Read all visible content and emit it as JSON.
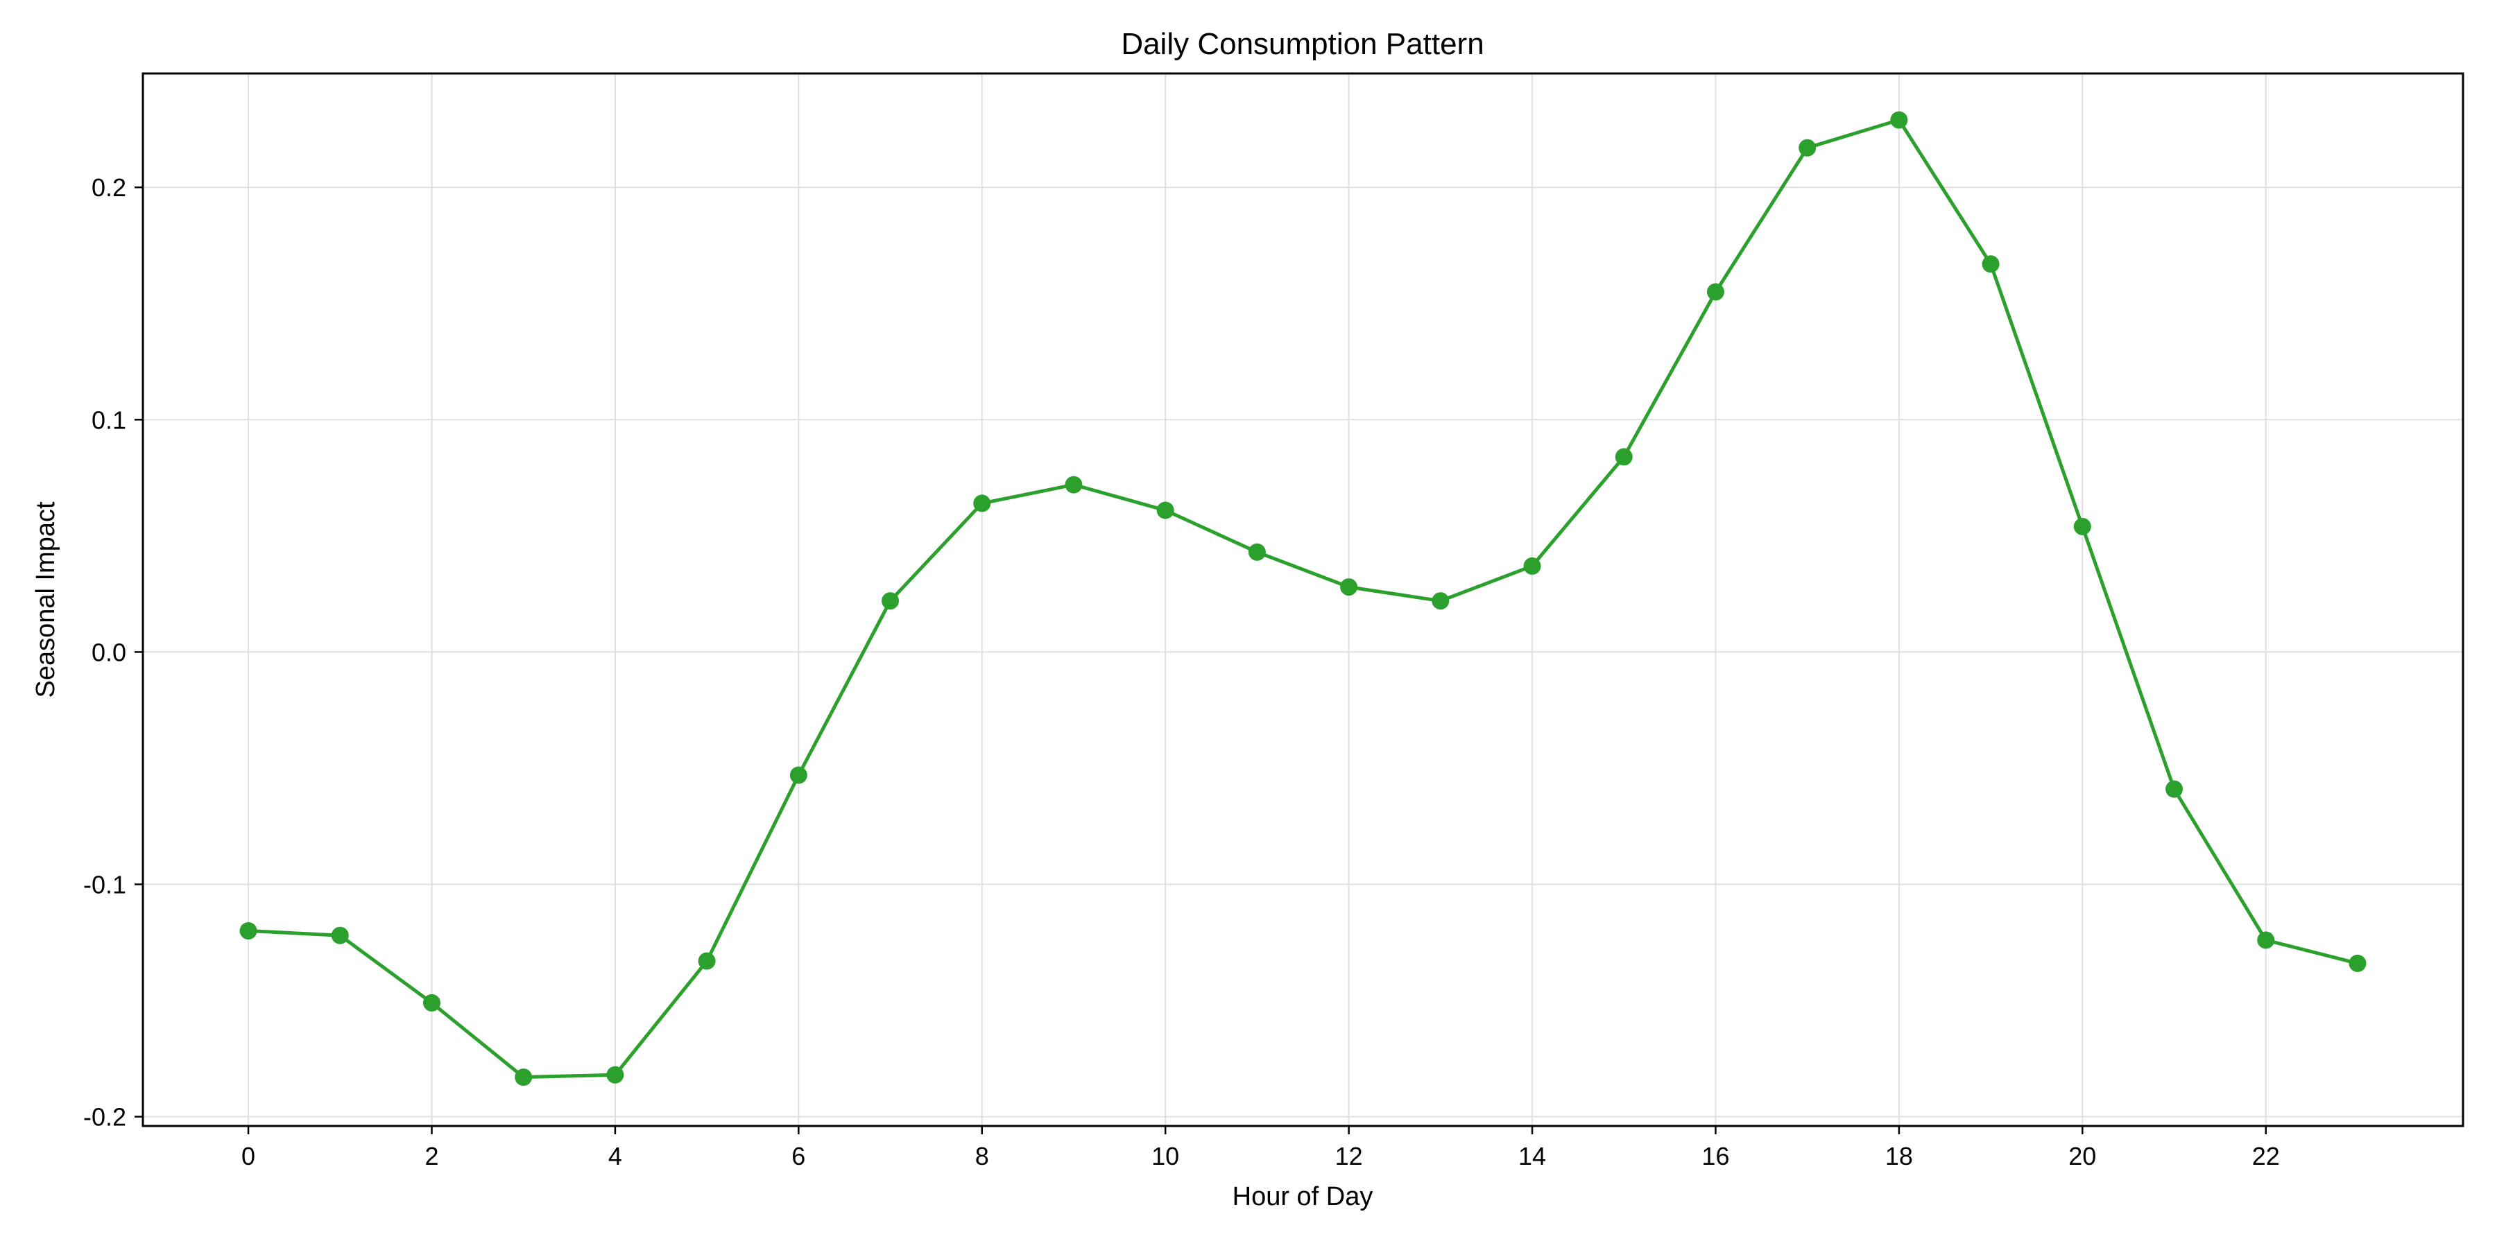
{
  "chart_data": {
    "type": "line",
    "title": "Daily Consumption Pattern",
    "xlabel": "Hour of Day",
    "ylabel": "Seasonal Impact",
    "x": [
      0,
      1,
      2,
      3,
      4,
      5,
      6,
      7,
      8,
      9,
      10,
      11,
      12,
      13,
      14,
      15,
      16,
      17,
      18,
      19,
      20,
      21,
      22,
      23
    ],
    "series": [
      {
        "values": [
          -0.12,
          -0.122,
          -0.151,
          -0.183,
          -0.182,
          -0.133,
          -0.053,
          0.022,
          0.064,
          0.072,
          0.061,
          0.043,
          0.028,
          0.022,
          0.037,
          0.084,
          0.155,
          0.217,
          0.229,
          0.167,
          0.054,
          -0.059,
          -0.124,
          -0.134
        ],
        "color": "#2ca02c",
        "marker": "circle"
      }
    ],
    "xticks": [
      0,
      2,
      4,
      6,
      8,
      10,
      12,
      14,
      16,
      18,
      20,
      22
    ],
    "xtick_labels": [
      "0",
      "2",
      "4",
      "6",
      "8",
      "10",
      "12",
      "14",
      "16",
      "18",
      "20",
      "22"
    ],
    "yticks": [
      -0.2,
      -0.1,
      0.0,
      0.1,
      0.2
    ],
    "ytick_labels": [
      "-0.2",
      "-0.1",
      "0.0",
      "0.1",
      "0.2"
    ],
    "xlim": [
      -1.15,
      24.15
    ],
    "ylim": [
      -0.204,
      0.249
    ],
    "grid": true
  }
}
